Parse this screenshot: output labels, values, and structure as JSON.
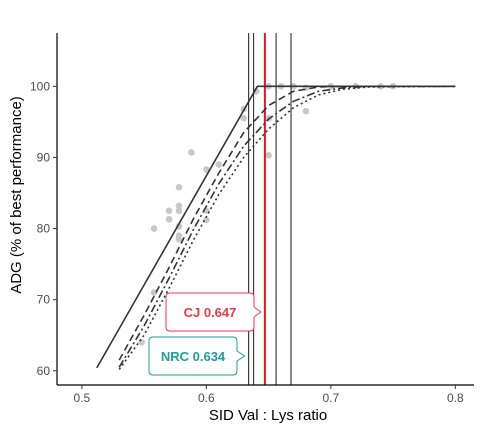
{
  "chart_data": {
    "type": "scatter",
    "xlabel": "SID Val : Lys ratio",
    "ylabel": "ADG (% of best performance)",
    "xlim": [
      0.48,
      0.815
    ],
    "ylim": [
      58,
      107.5
    ],
    "x_ticks": [
      "0.5",
      "0.6",
      "0.7",
      "0.8"
    ],
    "y_ticks": [
      "60",
      "70",
      "80",
      "90",
      "100"
    ],
    "grid": false,
    "points": [
      {
        "x": 0.548,
        "y": 64.0
      },
      {
        "x": 0.558,
        "y": 71.0
      },
      {
        "x": 0.558,
        "y": 80.0
      },
      {
        "x": 0.57,
        "y": 81.3
      },
      {
        "x": 0.57,
        "y": 82.5
      },
      {
        "x": 0.578,
        "y": 78.5
      },
      {
        "x": 0.578,
        "y": 79.0
      },
      {
        "x": 0.578,
        "y": 80.3
      },
      {
        "x": 0.578,
        "y": 82.5
      },
      {
        "x": 0.578,
        "y": 83.2
      },
      {
        "x": 0.578,
        "y": 85.8
      },
      {
        "x": 0.588,
        "y": 90.7
      },
      {
        "x": 0.6,
        "y": 81.2
      },
      {
        "x": 0.6,
        "y": 82.5
      },
      {
        "x": 0.6,
        "y": 88.3
      },
      {
        "x": 0.61,
        "y": 89.0
      },
      {
        "x": 0.63,
        "y": 95.5
      },
      {
        "x": 0.63,
        "y": 96.8
      },
      {
        "x": 0.64,
        "y": 99.3
      },
      {
        "x": 0.65,
        "y": 90.3
      },
      {
        "x": 0.65,
        "y": 95.5
      },
      {
        "x": 0.65,
        "y": 100.0
      },
      {
        "x": 0.66,
        "y": 100.0
      },
      {
        "x": 0.67,
        "y": 100.0
      },
      {
        "x": 0.68,
        "y": 96.5
      },
      {
        "x": 0.68,
        "y": 99.8
      },
      {
        "x": 0.7,
        "y": 100.0
      },
      {
        "x": 0.72,
        "y": 100.0
      },
      {
        "x": 0.74,
        "y": 100.0
      },
      {
        "x": 0.75,
        "y": 100.0
      }
    ],
    "series": [
      {
        "style": "solid",
        "values": [
          [
            0.512,
            60.4
          ],
          [
            0.641,
            100.0
          ],
          [
            0.8,
            100.0
          ]
        ]
      },
      {
        "style": "dashed",
        "values": [
          [
            0.53,
            61.5
          ],
          [
            0.55,
            67.8
          ],
          [
            0.57,
            74.5
          ],
          [
            0.59,
            81.5
          ],
          [
            0.61,
            87.8
          ],
          [
            0.63,
            93.5
          ],
          [
            0.65,
            97.3
          ],
          [
            0.67,
            99.3
          ],
          [
            0.69,
            99.9
          ],
          [
            0.71,
            100.0
          ],
          [
            0.8,
            100.0
          ]
        ]
      },
      {
        "style": "dotdash",
        "values": [
          [
            0.53,
            60.5
          ],
          [
            0.55,
            66.3
          ],
          [
            0.57,
            73.0
          ],
          [
            0.59,
            80.0
          ],
          [
            0.61,
            86.3
          ],
          [
            0.63,
            91.6
          ],
          [
            0.65,
            95.4
          ],
          [
            0.67,
            97.9
          ],
          [
            0.69,
            99.3
          ],
          [
            0.71,
            99.8
          ],
          [
            0.73,
            100.0
          ],
          [
            0.8,
            100.0
          ]
        ]
      },
      {
        "style": "dotted",
        "values": [
          [
            0.53,
            60.2
          ],
          [
            0.55,
            65.0
          ],
          [
            0.57,
            71.6
          ],
          [
            0.59,
            78.5
          ],
          [
            0.61,
            84.8
          ],
          [
            0.63,
            90.0
          ],
          [
            0.65,
            94.0
          ],
          [
            0.67,
            97.0
          ],
          [
            0.69,
            98.8
          ],
          [
            0.71,
            99.6
          ],
          [
            0.73,
            99.9
          ],
          [
            0.8,
            100.0
          ]
        ]
      }
    ],
    "vlines": [
      {
        "x": 0.634,
        "color": "#000000"
      },
      {
        "x": 0.638,
        "color": "#000000"
      },
      {
        "x": 0.647,
        "color": "#e0191f"
      },
      {
        "x": 0.656,
        "color": "#000000"
      },
      {
        "x": 0.668,
        "color": "#000000"
      }
    ],
    "annotations": [
      {
        "id": "cj",
        "label": "CJ 0.647",
        "x": 0.647,
        "y": 66.0,
        "color": "#e8394a"
      },
      {
        "id": "nrc",
        "label": "NRC 0.634",
        "x": 0.634,
        "y": 62.0,
        "color": "#1f9e9a"
      }
    ],
    "colors": {
      "curve": "#333333",
      "points": "#c8c8c8",
      "vline": "#000000",
      "red_line": "#e0191f"
    }
  }
}
